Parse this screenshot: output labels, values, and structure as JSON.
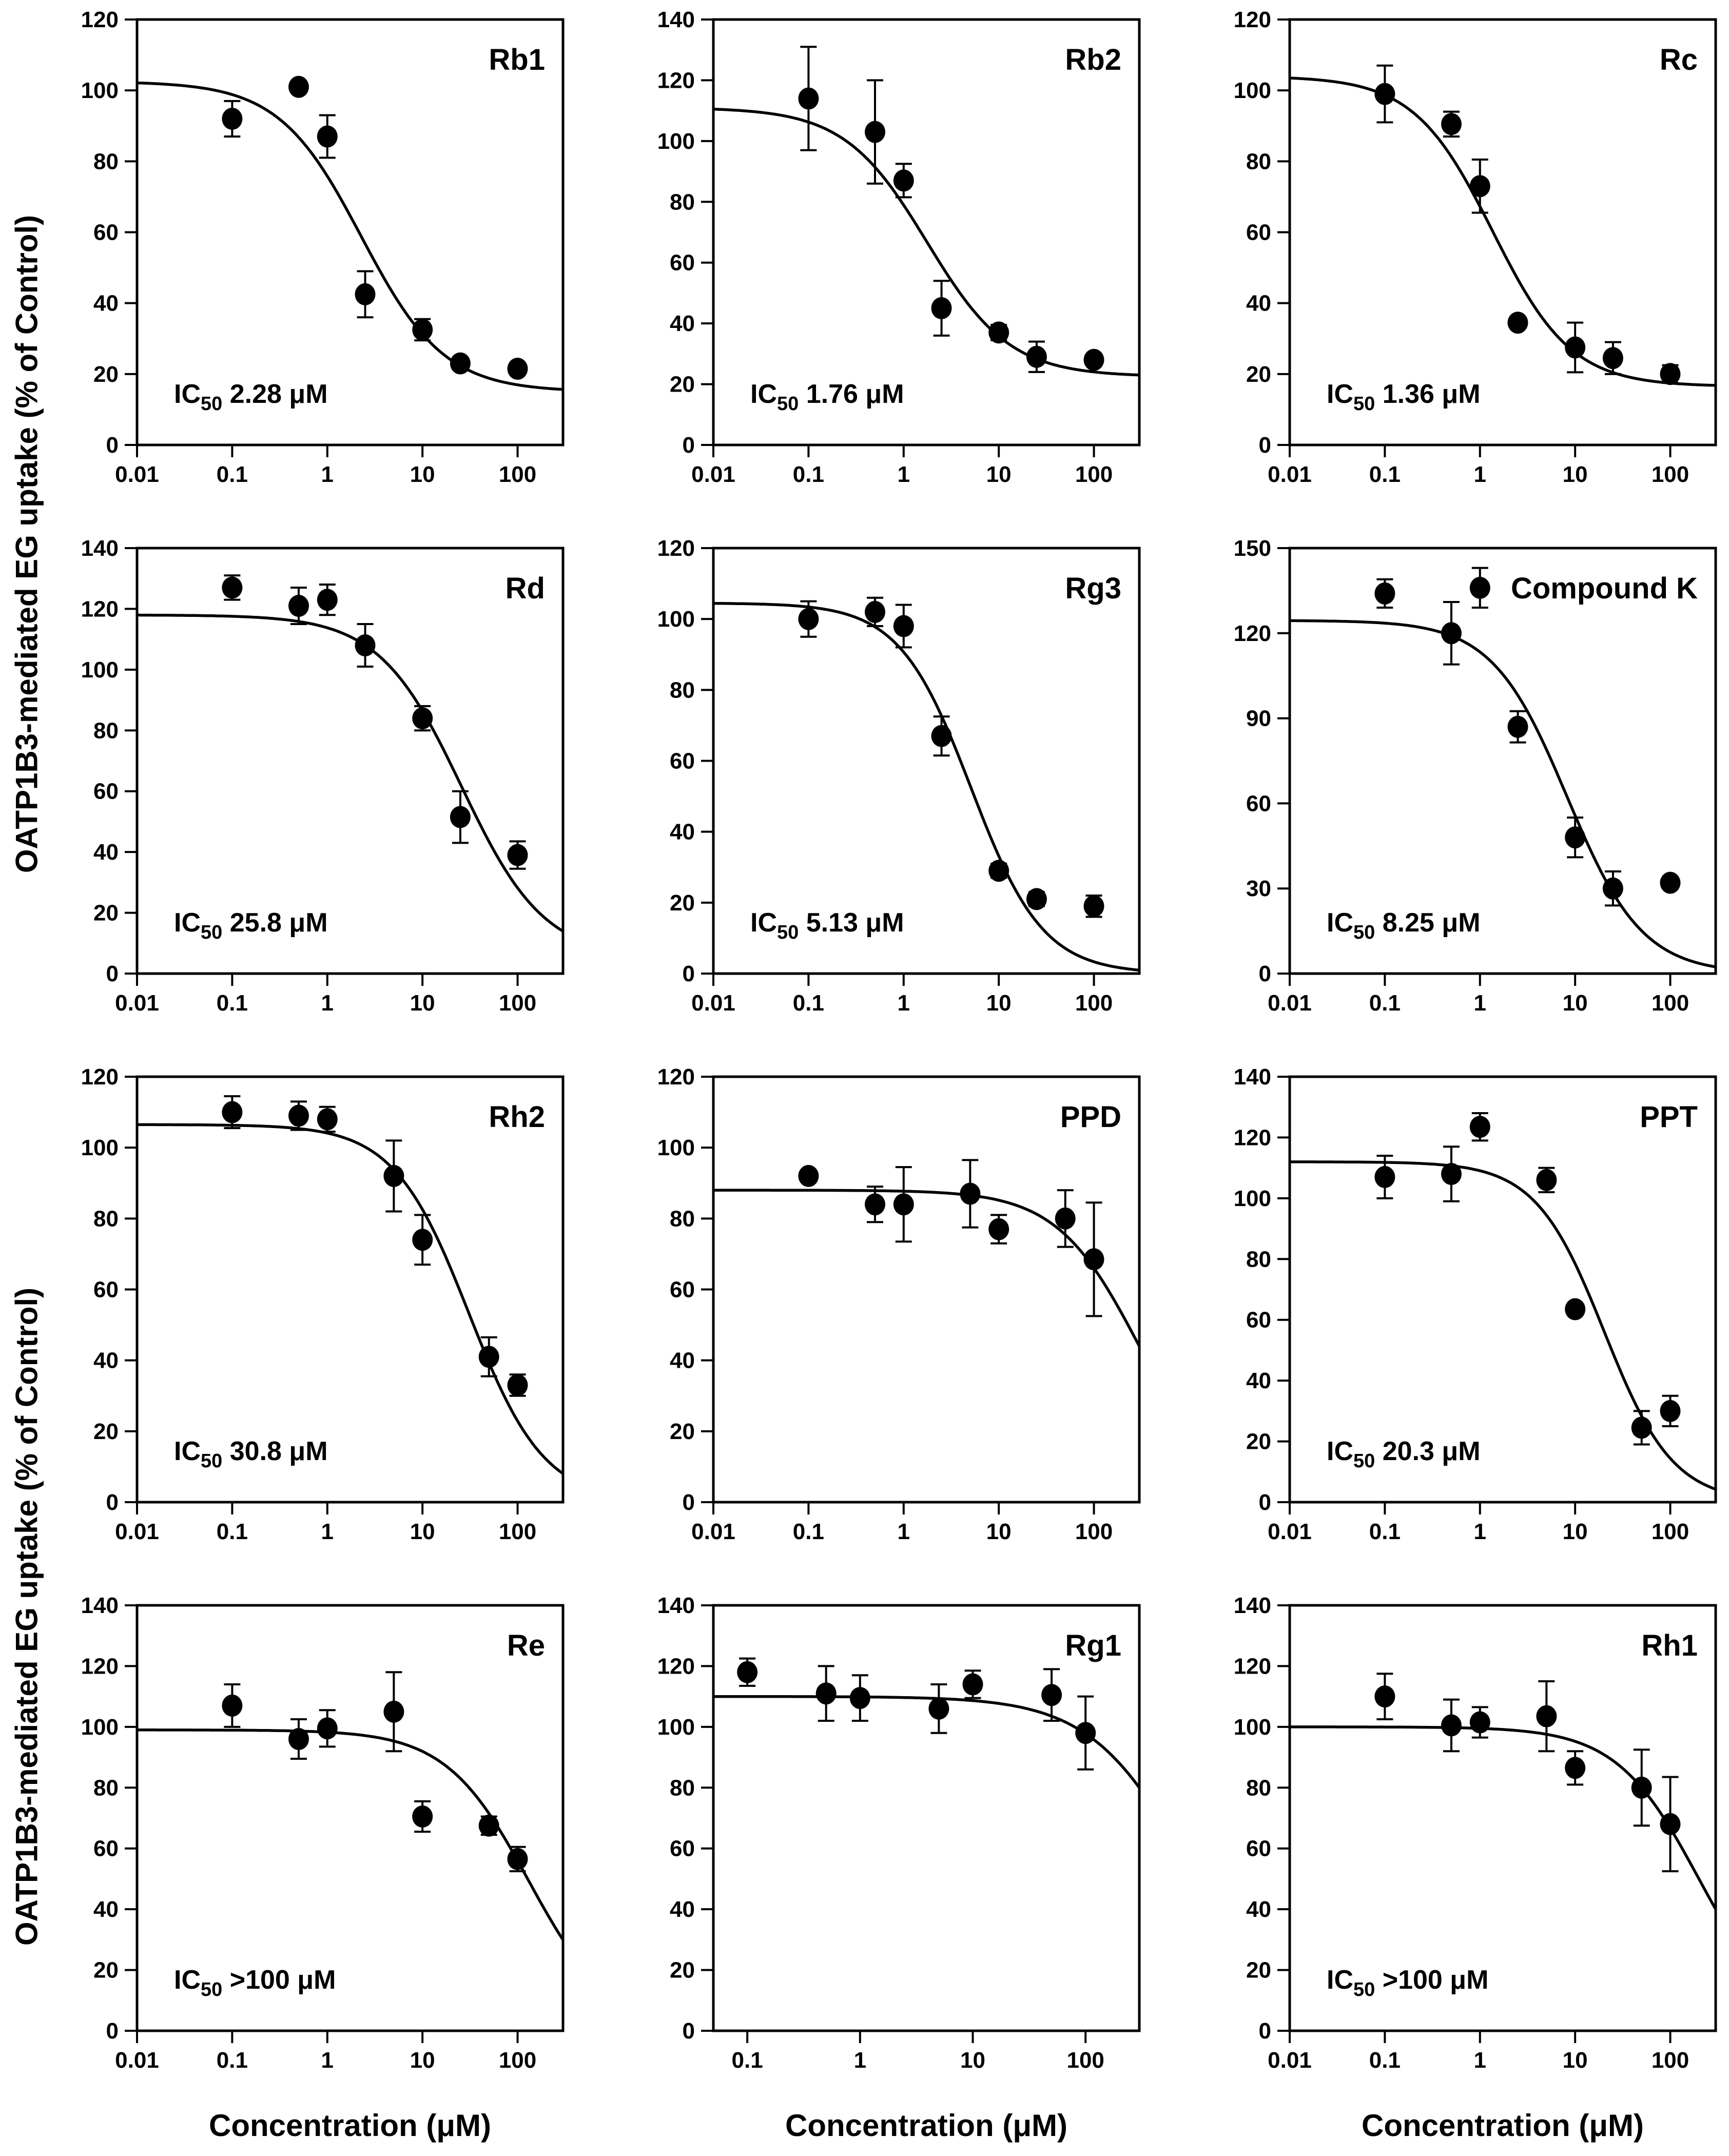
{
  "chart_data": {
    "type": "scatter",
    "layout": "4x3 grid of dose-response curves",
    "x_scale": "log",
    "x_axis_label": "Concentration (μM)",
    "y_axis_label": "OATP1B3-mediated EG uptake (% of Control)",
    "marker": "filled black circle with error bars",
    "curve": "4-parameter logistic fit, solid black line",
    "colors": {
      "foreground": "#000000",
      "background": "#ffffff"
    },
    "ic50_prefix": "IC",
    "ic50_sub": "50",
    "panels": [
      {
        "title": "Rb1",
        "ic50_value": "2.28 μM",
        "ylim": [
          0,
          120
        ],
        "ystep": 20,
        "xmin": 0.01,
        "xmax": 300,
        "xticks": [
          0.01,
          0.1,
          1,
          10,
          100
        ],
        "xticklabels": [
          "0.01",
          "0.1",
          "1",
          "10",
          "100"
        ],
        "x": [
          0.1,
          0.5,
          1,
          2.5,
          10,
          25,
          100
        ],
        "y": [
          92,
          101,
          87,
          42.5,
          32.5,
          23,
          21.5
        ],
        "yerr": [
          5,
          0,
          6,
          6.5,
          3,
          0,
          0
        ],
        "curve_fit": {
          "top": 102.5,
          "bottom": 15,
          "ic50": 2.28,
          "hill": 1.0
        }
      },
      {
        "title": "Rb2",
        "ic50_value": "1.76 μM",
        "ylim": [
          0,
          140
        ],
        "ystep": 20,
        "xmin": 0.01,
        "xmax": 300,
        "xticks": [
          0.01,
          0.1,
          1,
          10,
          100
        ],
        "xticklabels": [
          "0.01",
          "0.1",
          "1",
          "10",
          "100"
        ],
        "x": [
          0.1,
          0.5,
          1,
          2.5,
          10,
          25,
          100
        ],
        "y": [
          114,
          103,
          87,
          45,
          37,
          29,
          28
        ],
        "yerr": [
          17,
          17,
          5.5,
          9,
          2.5,
          5,
          0
        ],
        "curve_fit": {
          "top": 111,
          "bottom": 22.5,
          "ic50": 1.76,
          "hill": 1.0
        }
      },
      {
        "title": "Rc",
        "ic50_value": "1.36 μM",
        "ylim": [
          0,
          120
        ],
        "ystep": 20,
        "xmin": 0.01,
        "xmax": 300,
        "xticks": [
          0.01,
          0.1,
          1,
          10,
          100
        ],
        "xticklabels": [
          "0.01",
          "0.1",
          "1",
          "10",
          "100"
        ],
        "x": [
          0.1,
          0.5,
          1,
          2.5,
          10,
          25,
          100
        ],
        "y": [
          99,
          90.5,
          73,
          34.5,
          27.5,
          24.5,
          20
        ],
        "yerr": [
          8,
          3.5,
          7.5,
          0,
          7,
          4.5,
          2.5
        ],
        "curve_fit": {
          "top": 104,
          "bottom": 16.5,
          "ic50": 1.36,
          "hill": 1.05
        }
      },
      {
        "title": "Rd",
        "ic50_value": "25.8 μM",
        "ylim": [
          0,
          140
        ],
        "ystep": 20,
        "xmin": 0.01,
        "xmax": 300,
        "xticks": [
          0.01,
          0.1,
          1,
          10,
          100
        ],
        "xticklabels": [
          "0.01",
          "0.1",
          "1",
          "10",
          "100"
        ],
        "x": [
          0.1,
          0.5,
          1,
          2.5,
          10,
          25,
          100
        ],
        "y": [
          127,
          121,
          123,
          108,
          84,
          51.5,
          39
        ],
        "yerr": [
          4,
          6,
          5,
          7,
          4,
          8.5,
          4.5
        ],
        "curve_fit": {
          "top": 118,
          "bottom": 5,
          "ic50": 25.8,
          "hill": 1.0
        }
      },
      {
        "title": "Rg3",
        "ic50_value": "5.13 μM",
        "ylim": [
          0,
          120
        ],
        "ystep": 20,
        "xmin": 0.01,
        "xmax": 300,
        "xticks": [
          0.01,
          0.1,
          1,
          10,
          100
        ],
        "xticklabels": [
          "0.01",
          "0.1",
          "1",
          "10",
          "100"
        ],
        "x": [
          0.1,
          0.5,
          1,
          2.5,
          10,
          25,
          100
        ],
        "y": [
          100,
          102,
          98,
          67,
          29,
          21,
          19
        ],
        "yerr": [
          5,
          4,
          6,
          5.5,
          2,
          2,
          3
        ],
        "curve_fit": {
          "top": 104.5,
          "bottom": 0,
          "ic50": 5.13,
          "hill": 1.15
        }
      },
      {
        "title": "Compound K",
        "ic50_value": "8.25 μM",
        "ylim": [
          0,
          150
        ],
        "ystep": 30,
        "xmin": 0.01,
        "xmax": 300,
        "xticks": [
          0.01,
          0.1,
          1,
          10,
          100
        ],
        "xticklabels": [
          "0.01",
          "0.1",
          "1",
          "10",
          "100"
        ],
        "x": [
          0.1,
          0.5,
          1,
          2.5,
          10,
          25,
          100
        ],
        "y": [
          134,
          120,
          136,
          87,
          48,
          30,
          32
        ],
        "yerr": [
          5,
          11,
          7,
          5.5,
          7,
          6,
          0
        ],
        "curve_fit": {
          "top": 124.5,
          "bottom": 0,
          "ic50": 8.25,
          "hill": 1.1
        }
      },
      {
        "title": "Rh2",
        "ic50_value": "30.8 μM",
        "ylim": [
          0,
          120
        ],
        "ystep": 20,
        "xmin": 0.01,
        "xmax": 300,
        "xticks": [
          0.01,
          0.1,
          1,
          10,
          100
        ],
        "xticklabels": [
          "0.01",
          "0.1",
          "1",
          "10",
          "100"
        ],
        "x": [
          0.1,
          0.5,
          1,
          5,
          10,
          50,
          100
        ],
        "y": [
          110,
          109,
          108,
          92,
          74,
          41,
          33
        ],
        "yerr": [
          4.5,
          4,
          3.5,
          10,
          7,
          5.5,
          3
        ],
        "curve_fit": {
          "top": 106.5,
          "bottom": 0,
          "ic50": 30.8,
          "hill": 1.1
        }
      },
      {
        "title": "PPD",
        "ic50_value": null,
        "ylim": [
          0,
          120
        ],
        "ystep": 20,
        "xmin": 0.01,
        "xmax": 300,
        "xticks": [
          0.01,
          0.1,
          1,
          10,
          100
        ],
        "xticklabels": [
          "0.01",
          "0.1",
          "1",
          "10",
          "100"
        ],
        "x": [
          0.1,
          0.5,
          1,
          5,
          10,
          50,
          100
        ],
        "y": [
          92,
          84,
          84,
          87,
          77,
          80,
          68.5
        ],
        "yerr": [
          0,
          5,
          10.5,
          9.5,
          4,
          8,
          16
        ],
        "curve_fit": {
          "top": 88,
          "bottom": 0,
          "ic50": 300,
          "hill": 1.0
        }
      },
      {
        "title": "PPT",
        "ic50_value": "20.3 μM",
        "ylim": [
          0,
          140
        ],
        "ystep": 20,
        "xmin": 0.01,
        "xmax": 300,
        "xticks": [
          0.01,
          0.1,
          1,
          10,
          100
        ],
        "xticklabels": [
          "0.01",
          "0.1",
          "1",
          "10",
          "100"
        ],
        "x": [
          0.1,
          0.5,
          1,
          5,
          10,
          50,
          100
        ],
        "y": [
          107,
          108,
          123.5,
          106,
          63.5,
          24.5,
          30
        ],
        "yerr": [
          7,
          9,
          4.5,
          4,
          0,
          5.5,
          5
        ],
        "curve_fit": {
          "top": 112,
          "bottom": 0,
          "ic50": 20.3,
          "hill": 1.2
        }
      },
      {
        "title": "Re",
        "ic50_value": ">100 μM",
        "ylim": [
          0,
          140
        ],
        "ystep": 20,
        "xmin": 0.01,
        "xmax": 300,
        "xticks": [
          0.01,
          0.1,
          1,
          10,
          100
        ],
        "xticklabels": [
          "0.01",
          "0.1",
          "1",
          "10",
          "100"
        ],
        "x": [
          0.1,
          0.5,
          1,
          5,
          10,
          50,
          100
        ],
        "y": [
          107,
          96,
          99.5,
          105,
          70.5,
          67.5,
          56.5
        ],
        "yerr": [
          7,
          6.5,
          6,
          13,
          5,
          3,
          4
        ],
        "curve_fit": {
          "top": 99,
          "bottom": 0,
          "ic50": 130,
          "hill": 1.0
        },
        "x_caption": true
      },
      {
        "title": "Rg1",
        "ic50_value": null,
        "ylim": [
          0,
          140
        ],
        "ystep": 20,
        "xmin": 0.05,
        "xmax": 300,
        "xticks": [
          0.1,
          1,
          10,
          100
        ],
        "xticklabels": [
          "0.1",
          "1",
          "10",
          "100"
        ],
        "x": [
          0.1,
          0.5,
          1,
          5,
          10,
          50,
          100
        ],
        "y": [
          118,
          111,
          109.5,
          106,
          114,
          110.5,
          98
        ],
        "yerr": [
          4.5,
          9,
          7.5,
          8,
          4.5,
          8.5,
          12
        ],
        "curve_fit": {
          "top": 110,
          "bottom": 0,
          "ic50": 800,
          "hill": 1.0
        },
        "x_caption": true
      },
      {
        "title": "Rh1",
        "ic50_value": ">100 μM",
        "ylim": [
          0,
          140
        ],
        "ystep": 20,
        "xmin": 0.01,
        "xmax": 300,
        "xticks": [
          0.01,
          0.1,
          1,
          10,
          100
        ],
        "xticklabels": [
          "0.01",
          "0.1",
          "1",
          "10",
          "100"
        ],
        "x": [
          0.1,
          0.5,
          1,
          5,
          10,
          50,
          100
        ],
        "y": [
          110,
          100.5,
          101.5,
          103.5,
          86.5,
          80,
          68
        ],
        "yerr": [
          7.5,
          8.5,
          5,
          11.5,
          5.5,
          12.5,
          15.5
        ],
        "curve_fit": {
          "top": 100,
          "bottom": 0,
          "ic50": 200,
          "hill": 1.0
        },
        "x_caption": true
      }
    ]
  }
}
